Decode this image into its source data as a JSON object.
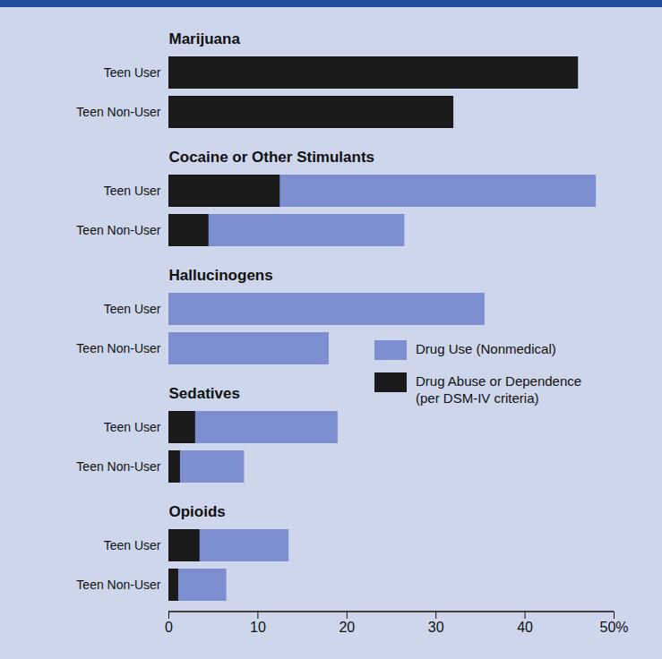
{
  "chart_data": {
    "type": "bar",
    "orientation": "horizontal",
    "stacked": false,
    "groups": [
      "Marijuana",
      "Cocaine or Other Stimulants",
      "Hallucinogens",
      "Sedatives",
      "Opioids"
    ],
    "categories": [
      "Teen User",
      "Teen Non-User",
      "Teen User",
      "Teen Non-User",
      "Teen User",
      "Teen Non-User",
      "Teen User",
      "Teen Non-User",
      "Teen User",
      "Teen Non-User"
    ],
    "series": [
      {
        "name": "Drug Use (Nonmedical)",
        "color": "#7d8fd0",
        "values": [
          null,
          null,
          48,
          26.5,
          35.5,
          18,
          19,
          8.5,
          13.5,
          6.5
        ]
      },
      {
        "name": "Drug Abuse or Dependence (per DSM-IV criteria)",
        "color": "#1a1a1a",
        "values": [
          46,
          32,
          12.5,
          4.5,
          null,
          null,
          3,
          1.3,
          3.5,
          1.1
        ]
      }
    ],
    "xlim": [
      0,
      50
    ],
    "xticks": [
      0,
      10,
      20,
      30,
      40,
      {
        "value": 50,
        "label": "50%"
      }
    ],
    "legend": "right",
    "grid": false
  }
}
